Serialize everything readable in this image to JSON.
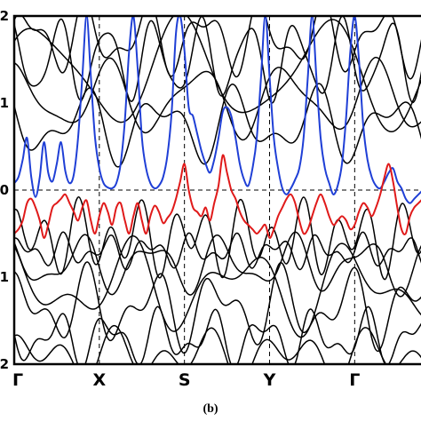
{
  "chart_data": {
    "type": "line",
    "title": "",
    "xlabel": "",
    "ylabel": "",
    "x_ticks": [
      "Γ",
      "X",
      "S",
      "Y",
      "Γ"
    ],
    "x_tick_positions": [
      0,
      1,
      2,
      3,
      4
    ],
    "xlim": [
      0,
      4.8
    ],
    "y_ticks": [
      "2",
      "1",
      "0",
      "1",
      "2"
    ],
    "y_tick_values": [
      2,
      1,
      0,
      -1,
      -2
    ],
    "ylim": [
      -2,
      2
    ],
    "fermi_level": 0,
    "caption": "(b)",
    "colors": {
      "highlight_upper": "#1f3fd6",
      "highlight_lower": "#e01a1a",
      "bands": "#000000"
    },
    "series": [
      {
        "color": "#1f3fd6",
        "x": [
          0,
          0.05,
          0.1,
          0.15,
          0.2,
          0.25,
          0.3,
          0.35,
          0.4,
          0.45,
          0.5,
          0.55,
          0.6,
          0.65,
          0.7,
          0.75,
          0.8,
          0.85,
          0.9,
          0.95,
          1.0,
          1.05,
          1.1,
          1.15,
          1.2,
          1.25,
          1.3,
          1.35,
          1.4,
          1.45,
          1.5,
          1.55,
          1.6,
          1.65,
          1.7,
          1.75,
          1.8,
          1.85,
          1.9,
          1.95,
          2.0,
          2.05,
          2.1,
          2.15,
          2.2,
          2.25,
          2.3,
          2.35,
          2.4,
          2.45,
          2.5,
          2.55,
          2.6,
          2.65,
          2.7,
          2.75,
          2.8,
          2.85,
          2.9,
          2.95,
          3.0,
          3.05,
          3.1,
          3.15,
          3.2,
          3.25,
          3.3,
          3.35,
          3.4,
          3.45,
          3.5,
          3.55,
          3.6,
          3.65,
          3.7,
          3.75,
          3.8,
          3.85,
          3.9,
          3.95,
          4.0,
          4.05,
          4.1,
          4.15,
          4.2,
          4.25,
          4.3,
          4.35,
          4.4,
          4.45,
          4.5,
          4.55,
          4.6,
          4.65,
          4.7,
          4.75,
          4.8
        ],
        "y": [
          0.08,
          0.15,
          0.35,
          0.6,
          0.15,
          -0.08,
          0.15,
          0.55,
          0.2,
          0.1,
          0.3,
          0.55,
          0.22,
          0.08,
          0.18,
          0.6,
          1.3,
          2.0,
          1.3,
          0.6,
          0.25,
          0.08,
          0.03,
          0.02,
          0.08,
          0.3,
          0.8,
          1.6,
          2.0,
          1.4,
          0.6,
          0.25,
          0.08,
          0.02,
          0.05,
          0.15,
          0.4,
          0.9,
          1.8,
          2.0,
          1.6,
          0.95,
          0.85,
          0.65,
          0.45,
          0.3,
          0.2,
          0.35,
          0.6,
          0.9,
          0.95,
          0.85,
          0.6,
          0.3,
          0.12,
          0.05,
          0.25,
          0.6,
          1.3,
          2.0,
          1.3,
          0.6,
          0.25,
          0.02,
          -0.05,
          0.02,
          0.12,
          0.25,
          0.6,
          1.3,
          2.0,
          1.3,
          0.6,
          0.25,
          0.08,
          -0.05,
          0.05,
          0.3,
          0.85,
          1.6,
          2.0,
          1.5,
          0.75,
          0.35,
          0.15,
          0.05,
          0.02,
          0.1,
          0.2,
          0.25,
          0.1,
          0.02,
          -0.1,
          -0.15,
          -0.1,
          -0.05,
          0.0
        ]
      },
      {
        "color": "#e01a1a",
        "x": [
          0,
          0.05,
          0.1,
          0.15,
          0.2,
          0.25,
          0.3,
          0.35,
          0.4,
          0.45,
          0.5,
          0.55,
          0.6,
          0.65,
          0.7,
          0.75,
          0.8,
          0.85,
          0.9,
          0.95,
          1.0,
          1.05,
          1.1,
          1.15,
          1.2,
          1.25,
          1.3,
          1.35,
          1.4,
          1.45,
          1.5,
          1.55,
          1.6,
          1.65,
          1.7,
          1.75,
          1.8,
          1.85,
          1.9,
          1.95,
          2.0,
          2.05,
          2.1,
          2.15,
          2.2,
          2.25,
          2.3,
          2.35,
          2.4,
          2.45,
          2.5,
          2.55,
          2.6,
          2.65,
          2.7,
          2.75,
          2.8,
          2.85,
          2.9,
          2.95,
          3.0,
          3.05,
          3.1,
          3.15,
          3.2,
          3.25,
          3.3,
          3.35,
          3.4,
          3.45,
          3.5,
          3.55,
          3.6,
          3.65,
          3.7,
          3.75,
          3.8,
          3.85,
          3.9,
          3.95,
          4.0,
          4.05,
          4.1,
          4.15,
          4.2,
          4.25,
          4.3,
          4.35,
          4.4,
          4.45,
          4.5,
          4.55,
          4.6,
          4.65,
          4.7,
          4.75,
          4.8
        ],
        "y": [
          -0.5,
          -0.45,
          -0.35,
          -0.15,
          -0.1,
          -0.2,
          -0.35,
          -0.55,
          -0.4,
          -0.2,
          -0.15,
          -0.1,
          -0.05,
          -0.15,
          -0.25,
          -0.35,
          -0.2,
          -0.12,
          -0.35,
          -0.5,
          -0.3,
          -0.15,
          -0.25,
          -0.4,
          -0.2,
          -0.15,
          -0.35,
          -0.5,
          -0.3,
          -0.15,
          -0.35,
          -0.5,
          -0.3,
          -0.18,
          -0.25,
          -0.38,
          -0.32,
          -0.25,
          -0.1,
          0.1,
          0.3,
          0.0,
          -0.2,
          -0.25,
          -0.3,
          -0.2,
          -0.35,
          -0.15,
          0.05,
          0.4,
          0.2,
          0.0,
          -0.1,
          -0.25,
          -0.35,
          -0.4,
          -0.45,
          -0.5,
          -0.45,
          -0.4,
          -0.55,
          -0.45,
          -0.3,
          -0.2,
          -0.1,
          -0.05,
          -0.15,
          -0.35,
          -0.5,
          -0.45,
          -0.3,
          -0.15,
          -0.05,
          -0.15,
          -0.3,
          -0.4,
          -0.35,
          -0.3,
          -0.35,
          -0.45,
          -0.4,
          -0.25,
          -0.15,
          -0.2,
          -0.3,
          -0.2,
          -0.05,
          0.15,
          0.3,
          0.1,
          -0.2,
          -0.45,
          -0.5,
          -0.3,
          -0.2,
          -0.15,
          -0.1
        ]
      }
    ]
  }
}
